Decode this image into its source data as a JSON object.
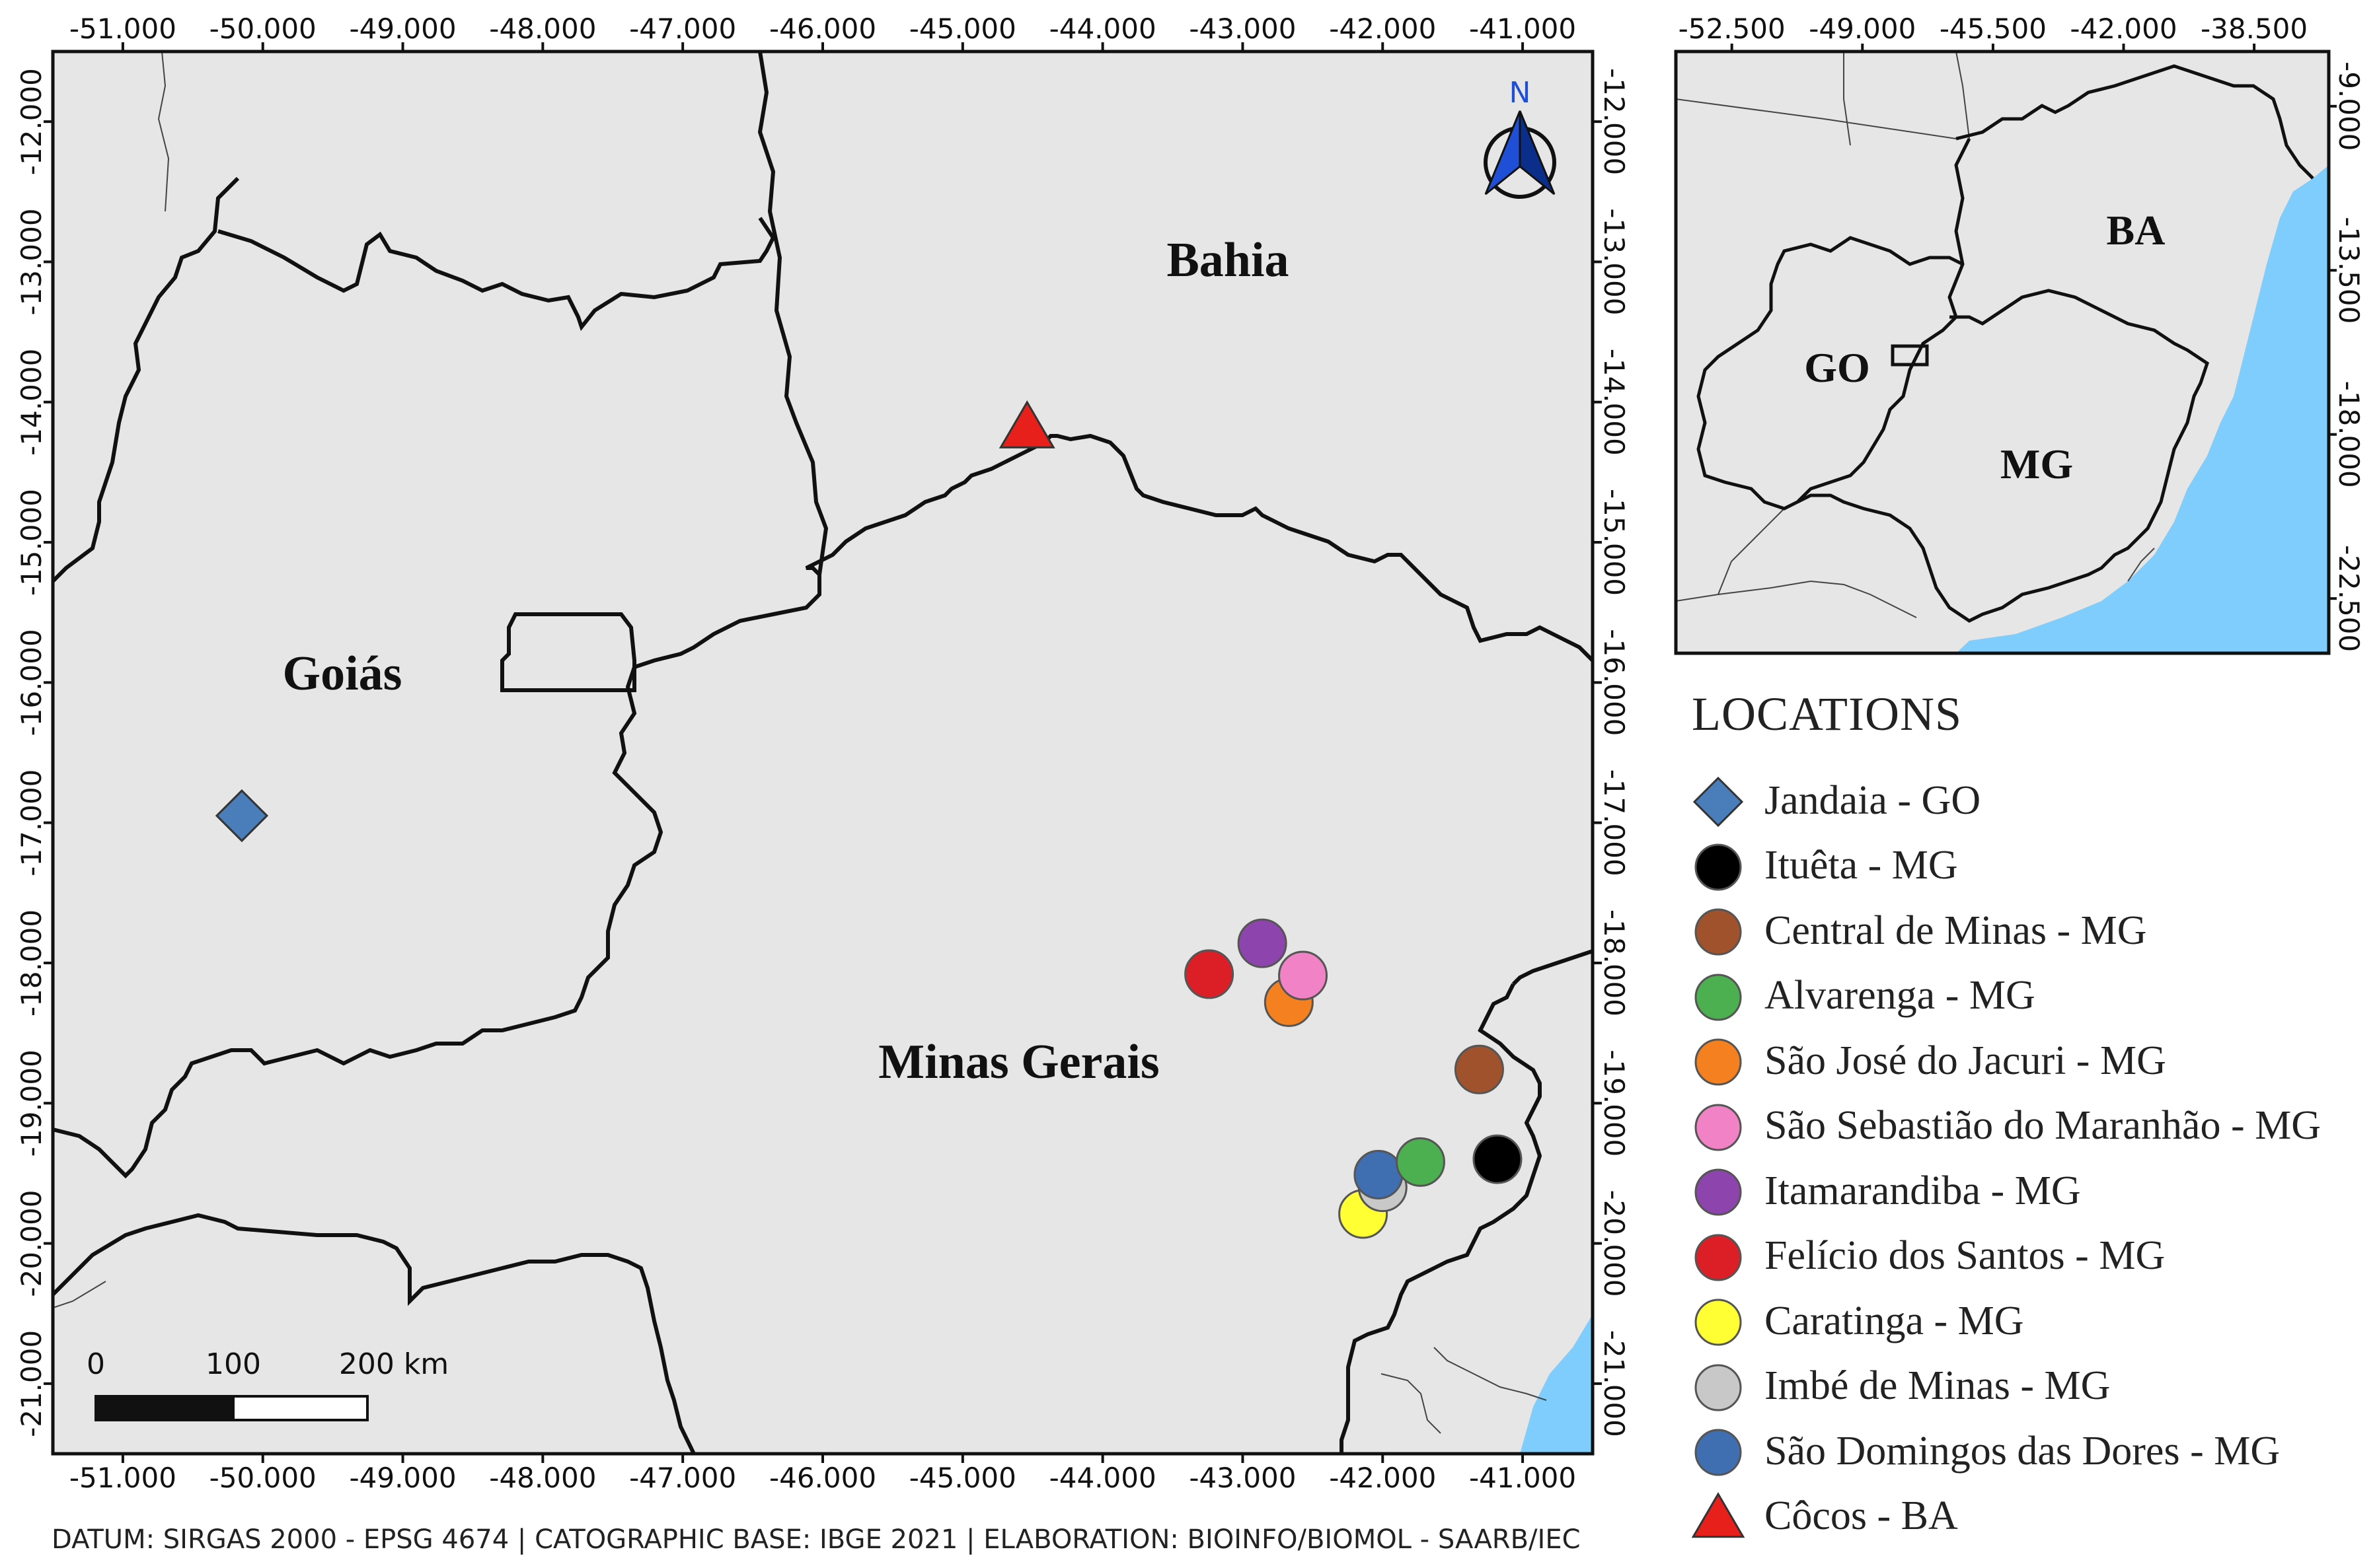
{
  "colors": {
    "land": "#e6e6e6",
    "ocean": "#7fcdfd",
    "border": "#111111",
    "north_arrow": "#1f4fd6"
  },
  "main_map": {
    "x_ticks": [
      "-51.000",
      "-50.000",
      "-49.000",
      "-48.000",
      "-47.000",
      "-46.000",
      "-45.000",
      "-44.000",
      "-43.000",
      "-42.000",
      "-41.000"
    ],
    "y_ticks": [
      "-12.000",
      "-13.000",
      "-14.000",
      "-15.000",
      "-16.000",
      "-17.000",
      "-18.000",
      "-19.000",
      "-20.000",
      "-21.000"
    ],
    "labels": {
      "bahia": "Bahia",
      "goias": "Goiás",
      "minas": "Minas Gerais"
    },
    "north": "N",
    "scalebar": {
      "l0": "0",
      "l1": "100",
      "l2": "200 km"
    }
  },
  "inset_map": {
    "x_ticks": [
      "-52.500",
      "-49.000",
      "-45.500",
      "-42.000",
      "-38.500"
    ],
    "y_ticks": [
      "-9.000",
      "-13.500",
      "-18.000",
      "-22.500"
    ],
    "labels": {
      "ba": "BA",
      "go": "GO",
      "mg": "MG"
    }
  },
  "legend": {
    "title": "LOCATIONS",
    "items": [
      {
        "label": "Jandaia - GO",
        "shape": "diamond",
        "color": "#4a7ebb",
        "lon": -50.15,
        "lat": -16.95
      },
      {
        "label": "Ituêta - MG",
        "shape": "circle",
        "color": "#000000",
        "lon": -41.18,
        "lat": -19.4
      },
      {
        "label": "Central de Minas - MG",
        "shape": "circle",
        "color": "#a0522d",
        "lon": -41.31,
        "lat": -18.76
      },
      {
        "label": "Alvarenga - MG",
        "shape": "circle",
        "color": "#4caf50",
        "lon": -41.73,
        "lat": -19.42
      },
      {
        "label": "São José do Jacuri - MG",
        "shape": "circle",
        "color": "#f4801f",
        "lon": -42.67,
        "lat": -18.28
      },
      {
        "label": "São Sebastião do Maranhão - MG",
        "shape": "circle",
        "color": "#f282c6",
        "lon": -42.57,
        "lat": -18.09
      },
      {
        "label": "Itamarandiba - MG",
        "shape": "circle",
        "color": "#8e44ad",
        "lon": -42.86,
        "lat": -17.86
      },
      {
        "label": "Felício dos Santos - MG",
        "shape": "circle",
        "color": "#dc1f26",
        "lon": -43.24,
        "lat": -18.08
      },
      {
        "label": "Caratinga - MG",
        "shape": "circle",
        "color": "#ffff33",
        "lon": -42.14,
        "lat": -19.79
      },
      {
        "label": "Imbé de Minas - MG",
        "shape": "circle",
        "color": "#c8c8c8",
        "lon": -42.0,
        "lat": -19.6
      },
      {
        "label": "São Domingos das Dores - MG",
        "shape": "circle",
        "color": "#3f6fb0",
        "lon": -42.03,
        "lat": -19.51
      },
      {
        "label": "Côcos - BA",
        "shape": "triangle",
        "color": "#e8201c",
        "lon": -44.54,
        "lat": -14.18
      }
    ]
  },
  "footer": "DATUM: SIRGAS 2000 - EPSG 4674 | CATOGRAPHIC BASE: IBGE 2021 | ELABORATION: BIOINFO/BIOMOL - SAARB/IEC"
}
